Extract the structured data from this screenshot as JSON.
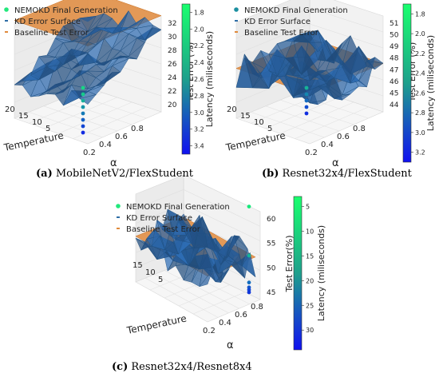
{
  "captions": [
    {
      "label": "(a)",
      "text": "MobileNetV2/FlexStudent"
    },
    {
      "label": "(b)",
      "text": "Resnet32x4/FlexStudent"
    },
    {
      "label": "(c)",
      "text": "Resnet32x4/Resnet8x4"
    }
  ],
  "legend": {
    "nemokd": "NEMOKD Final Generation",
    "kd_surface": "KD Error Surface",
    "baseline": "Baseline Test Error"
  },
  "axes": {
    "x_label": "Temperature",
    "y_label": "α",
    "z_label": "Test Error (%)",
    "z_label_c": "Test Error(%)",
    "colorbar_label": "Latency (miliseconds)"
  },
  "colors": {
    "surface": "#2f6ea6",
    "surface_edge": "#1f4f7f",
    "baseline": "#e08a3c",
    "nemokd": "#22e87c",
    "nemokd_b": "#1b8fa0",
    "colorbar_top": "#19ff6e",
    "colorbar_bottom": "#1010f0"
  },
  "chart_data": [
    {
      "type": "scatter",
      "title": "MobileNetV2/FlexStudent",
      "xlabel": "Temperature",
      "ylabel": "α",
      "zlabel": "Test Error (%)",
      "x_ticks": [
        "20",
        "15",
        "10",
        "5"
      ],
      "y_ticks": [
        "0.2",
        "0.4",
        "0.6",
        "0.8"
      ],
      "z_ticks": [
        "20",
        "22",
        "24",
        "26",
        "28",
        "30",
        "32"
      ],
      "colorbar_label": "Latency (miliseconds)",
      "colorbar_ticks": [
        "1.8",
        "2.0",
        "2.2",
        "2.4",
        "2.6",
        "2.8",
        "3.0",
        "3.2",
        "3.4"
      ],
      "colorbar_range": [
        1.7,
        3.5
      ],
      "baseline_test_error": 32.5,
      "nemokd_points": [
        {
          "test_error": 24.5,
          "latency": 2.0
        },
        {
          "test_error": 23.8,
          "latency": 2.1
        },
        {
          "test_error": 23.2,
          "latency": 2.3
        },
        {
          "test_error": 22.6,
          "latency": 2.5
        },
        {
          "test_error": 22.0,
          "latency": 2.7
        },
        {
          "test_error": 21.3,
          "latency": 2.9
        },
        {
          "test_error": 20.6,
          "latency": 3.1
        },
        {
          "test_error": 20.0,
          "latency": 3.3
        }
      ]
    },
    {
      "type": "scatter",
      "title": "Resnet32x4/FlexStudent",
      "xlabel": "Temperature",
      "ylabel": "α",
      "zlabel": "Test Error (%)",
      "x_ticks": [
        "20",
        "15",
        "10",
        "5"
      ],
      "y_ticks": [
        "0.2",
        "0.4",
        "0.6",
        "0.8"
      ],
      "z_ticks": [
        "44",
        "45",
        "46",
        "47",
        "48",
        "49",
        "50",
        "51"
      ],
      "colorbar_label": "Latency (miliseconds)",
      "colorbar_ticks": [
        "1.8",
        "2.0",
        "2.2",
        "2.4",
        "2.6",
        "2.8",
        "3.0",
        "3.2"
      ],
      "colorbar_range": [
        1.7,
        3.3
      ],
      "baseline_test_error": 49.0,
      "nemokd_points": [
        {
          "test_error": 47.3,
          "latency": 2.2
        },
        {
          "test_error": 46.4,
          "latency": 2.5
        },
        {
          "test_error": 45.6,
          "latency": 2.7
        },
        {
          "test_error": 44.8,
          "latency": 2.9
        },
        {
          "test_error": 44.1,
          "latency": 3.1
        }
      ]
    },
    {
      "type": "scatter",
      "title": "Resnet32x4/Resnet8x4",
      "xlabel": "Temperature",
      "ylabel": "α",
      "zlabel": "Test Error(%)",
      "x_ticks": [
        "15",
        "10",
        "5"
      ],
      "y_ticks": [
        "0.2",
        "0.4",
        "0.6",
        "0.8"
      ],
      "z_ticks": [
        "45",
        "50",
        "55",
        "60"
      ],
      "colorbar_label": "Latency (miliseconds)",
      "colorbar_ticks": [
        "5",
        "10",
        "15",
        "20",
        "25",
        "30"
      ],
      "colorbar_range": [
        3,
        34
      ],
      "baseline_test_error": 50.0,
      "nemokd_points": [
        {
          "test_error": 63.0,
          "latency": 6
        },
        {
          "test_error": 53.0,
          "latency": 13
        },
        {
          "test_error": 47.5,
          "latency": 22
        },
        {
          "test_error": 46.5,
          "latency": 25
        },
        {
          "test_error": 46.0,
          "latency": 27
        },
        {
          "test_error": 45.5,
          "latency": 29
        }
      ]
    }
  ]
}
